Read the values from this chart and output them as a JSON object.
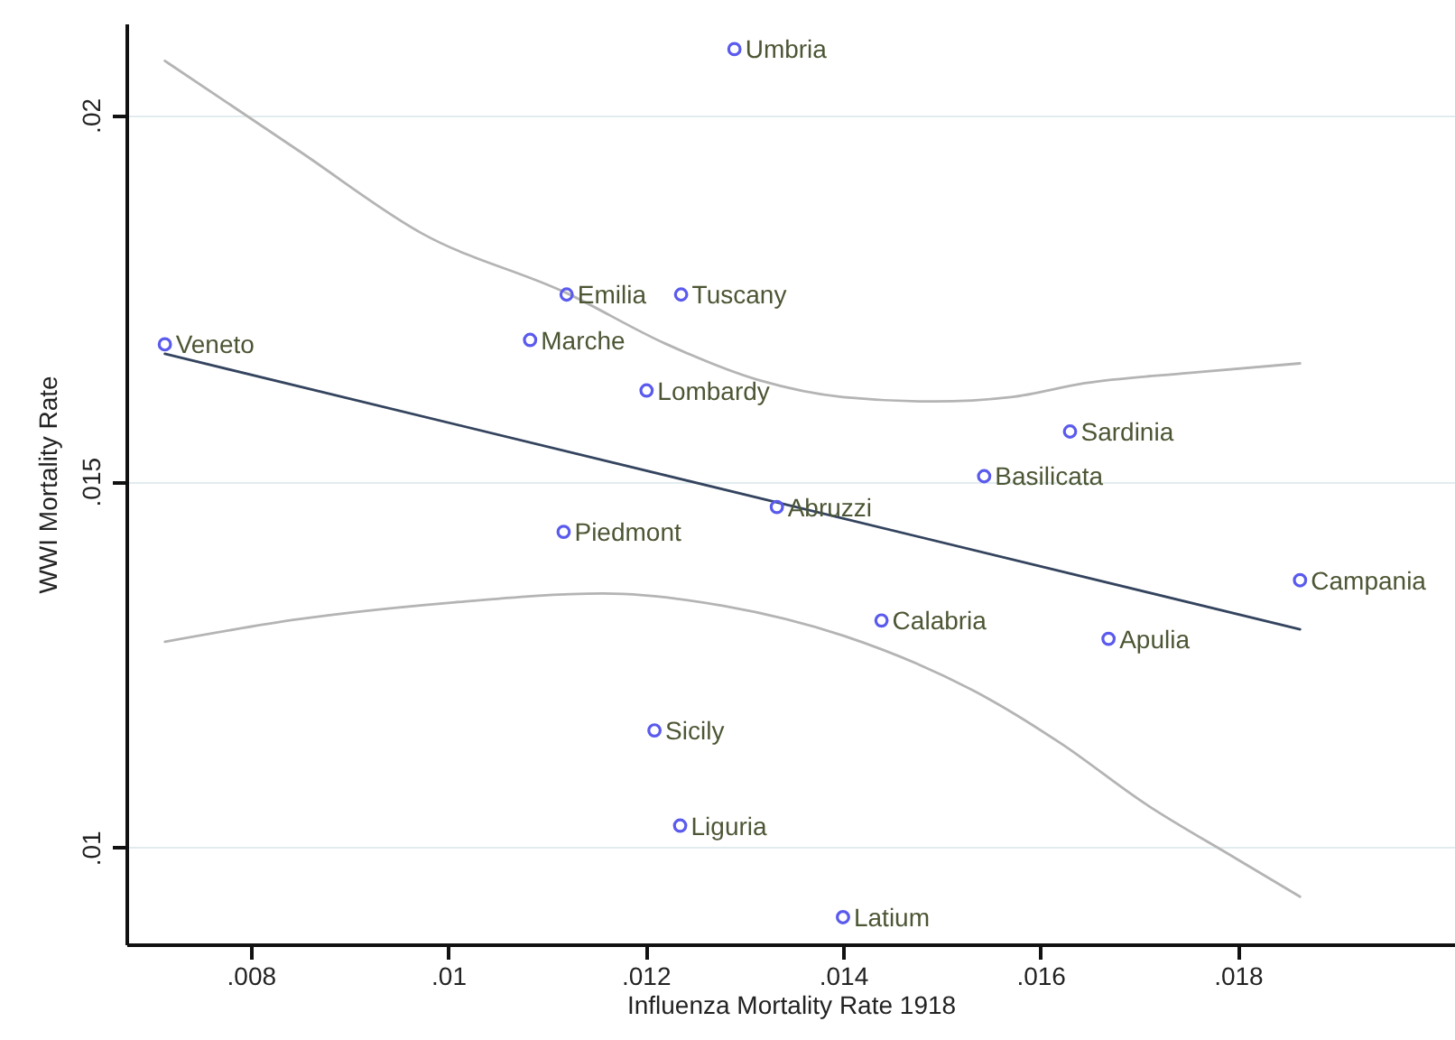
{
  "chart_data": {
    "type": "scatter",
    "xlabel": "Influenza Mortality Rate 1918",
    "ylabel": "WWI Mortality Rate",
    "xlim": [
      0.00674,
      0.0202
    ],
    "ylim": [
      0.00868,
      0.02125
    ],
    "xticks": [
      {
        "value": 0.008,
        "label": ".008"
      },
      {
        "value": 0.01,
        "label": ".01"
      },
      {
        "value": 0.012,
        "label": ".012"
      },
      {
        "value": 0.014,
        "label": ".014"
      },
      {
        "value": 0.016,
        "label": ".016"
      },
      {
        "value": 0.018,
        "label": ".018"
      }
    ],
    "yticks": [
      {
        "value": 0.01,
        "label": ".01"
      },
      {
        "value": 0.015,
        "label": ".015"
      },
      {
        "value": 0.02,
        "label": ".02"
      }
    ],
    "grid": "y",
    "series": [
      {
        "type": "line",
        "color": "#b4b4b4",
        "line_style": "solid",
        "x": [
          0.00713,
          0.0085,
          0.00974,
          0.0112,
          0.0122,
          0.01315,
          0.014,
          0.01492,
          0.0157,
          0.01645,
          0.0175,
          0.01863
        ],
        "values": [
          0.02074,
          0.0195,
          0.01838,
          0.01757,
          0.01688,
          0.01638,
          0.01615,
          0.01609,
          0.01615,
          0.01634,
          0.01648,
          0.01661
        ]
      },
      {
        "type": "line",
        "color": "#b4b4b4",
        "line_style": "solid",
        "x": [
          0.00713,
          0.0085,
          0.01,
          0.01157,
          0.01279,
          0.01401,
          0.01553,
          0.01621,
          0.01706,
          0.01797,
          0.01863
        ],
        "values": [
          0.01281,
          0.01312,
          0.01334,
          0.01347,
          0.0133,
          0.01289,
          0.01199,
          0.01142,
          0.0106,
          0.00986,
          0.00933
        ]
      },
      {
        "type": "line",
        "color": "#34445e",
        "line_style": "solid",
        "x": [
          0.00713,
          0.01863
        ],
        "values": [
          0.01674,
          0.01298
        ]
      },
      {
        "color": "#5a5aee",
        "marker": "circle",
        "x": [
          0.0129,
          0.00713,
          0.0112,
          0.01236,
          0.01083,
          0.01201,
          0.0163,
          0.01543,
          0.01333,
          0.01117,
          0.01863,
          0.01439,
          0.01669,
          0.01209,
          0.01235,
          0.014
        ],
        "values": [
          0.0209,
          0.01687,
          0.01755,
          0.01755,
          0.01693,
          0.01624,
          0.01568,
          0.01507,
          0.01465,
          0.01431,
          0.01365,
          0.0131,
          0.01285,
          0.0116,
          0.0103,
          0.00905
        ],
        "value_labels": [
          "Umbria",
          "Veneto",
          "Emilia",
          "Tuscany",
          "Marche",
          "Lombardy",
          "Sardinia",
          "Basilicata",
          "Abruzzi",
          "Piedmont",
          "Campania",
          "Calabria",
          "Apulia",
          "Sicily",
          "Liguria",
          "Latium"
        ]
      }
    ]
  }
}
